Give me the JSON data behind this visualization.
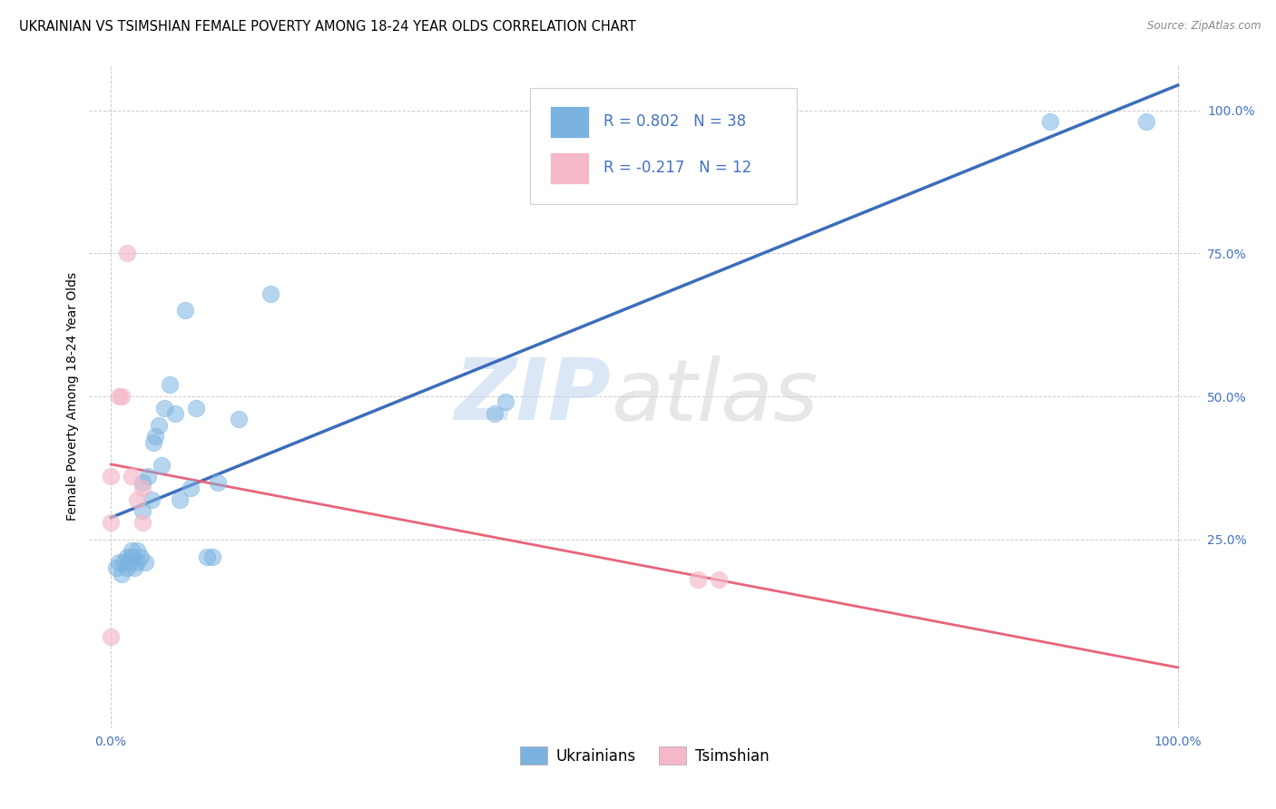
{
  "title": "UKRAINIAN VS TSIMSHIAN FEMALE POVERTY AMONG 18-24 YEAR OLDS CORRELATION CHART",
  "source": "Source: ZipAtlas.com",
  "ylabel": "Female Poverty Among 18-24 Year Olds",
  "xlim": [
    -0.02,
    1.02
  ],
  "ylim": [
    -0.08,
    1.08
  ],
  "xticks": [
    0.0,
    1.0
  ],
  "yticks": [
    0.25,
    0.5,
    0.75,
    1.0
  ],
  "xticklabels": [
    "0.0%",
    "100.0%"
  ],
  "yticklabels": [
    "25.0%",
    "50.0%",
    "75.0%",
    "100.0%"
  ],
  "watermark_zip": "ZIP",
  "watermark_atlas": "atlas",
  "blue_color": "#7ab3e0",
  "pink_color": "#f4b8c8",
  "blue_line_color": "#3c6dba",
  "pink_line_color": "#e8647a",
  "r_blue": 0.802,
  "n_blue": 38,
  "r_pink": -0.217,
  "n_pink": 12,
  "ukrainians_x": [
    0.005,
    0.008,
    0.01,
    0.012,
    0.015,
    0.015,
    0.018,
    0.02,
    0.02,
    0.022,
    0.025,
    0.025,
    0.028,
    0.03,
    0.03,
    0.032,
    0.035,
    0.038,
    0.04,
    0.042,
    0.045,
    0.048,
    0.05,
    0.055,
    0.06,
    0.065,
    0.07,
    0.075,
    0.08,
    0.09,
    0.095,
    0.1,
    0.12,
    0.15,
    0.36,
    0.37,
    0.88,
    0.97
  ],
  "ukrainians_y": [
    0.2,
    0.21,
    0.19,
    0.21,
    0.2,
    0.22,
    0.21,
    0.22,
    0.23,
    0.2,
    0.21,
    0.23,
    0.22,
    0.3,
    0.35,
    0.21,
    0.36,
    0.32,
    0.42,
    0.43,
    0.45,
    0.38,
    0.48,
    0.52,
    0.47,
    0.32,
    0.65,
    0.34,
    0.48,
    0.22,
    0.22,
    0.35,
    0.46,
    0.68,
    0.47,
    0.49,
    0.98,
    0.98
  ],
  "tsimshian_x": [
    0.0,
    0.0,
    0.0,
    0.008,
    0.01,
    0.015,
    0.02,
    0.025,
    0.03,
    0.03,
    0.55,
    0.57
  ],
  "tsimshian_y": [
    0.28,
    0.36,
    0.08,
    0.5,
    0.5,
    0.75,
    0.36,
    0.32,
    0.34,
    0.28,
    0.18,
    0.18
  ],
  "grid_color": "#c8c8c8",
  "background_color": "#ffffff",
  "tick_color": "#4472c4",
  "title_fontsize": 10.5,
  "axis_label_fontsize": 10,
  "tick_fontsize": 10,
  "legend_fontsize": 12
}
